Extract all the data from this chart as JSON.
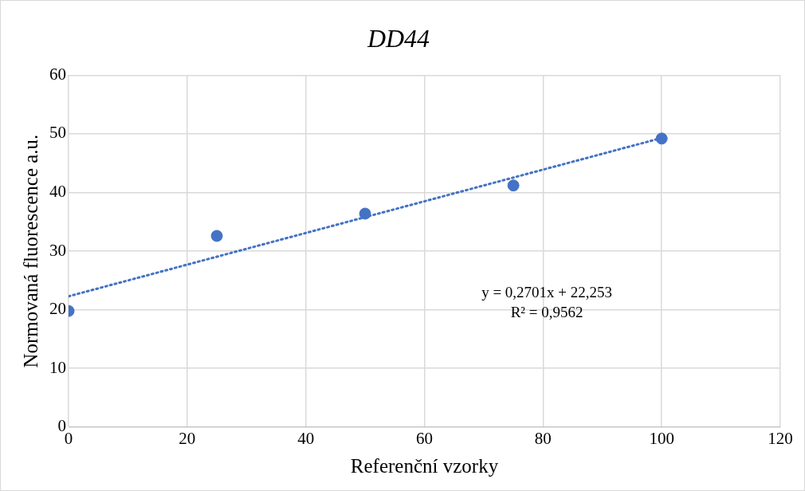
{
  "chart_data": {
    "type": "scatter",
    "title": "DD44",
    "xlabel": "Referenční vzorky",
    "ylabel": "Normovaná fluorescence a.u.",
    "series": [
      {
        "type": "scatter",
        "color": "#4472c4",
        "x": [
          0,
          25,
          50,
          75,
          100
        ],
        "values": [
          19.8,
          32.6,
          36.4,
          41.2,
          49.2
        ]
      },
      {
        "type": "line",
        "color": "#4472c4",
        "x": [
          0,
          100
        ],
        "values": [
          22.3,
          49.3
        ],
        "line_style": "dotted",
        "marker": "none"
      }
    ],
    "xlim": [
      0,
      120
    ],
    "xticks": [
      0,
      20,
      40,
      60,
      80,
      100,
      120
    ],
    "ylim": [
      0,
      60
    ],
    "yticks": [
      0,
      10,
      20,
      30,
      40,
      50,
      60
    ],
    "grid": true,
    "marker": "circle",
    "legend": false,
    "annotations": [
      "y = 0,2701x + 22,253",
      "R² = 0,9562"
    ]
  }
}
